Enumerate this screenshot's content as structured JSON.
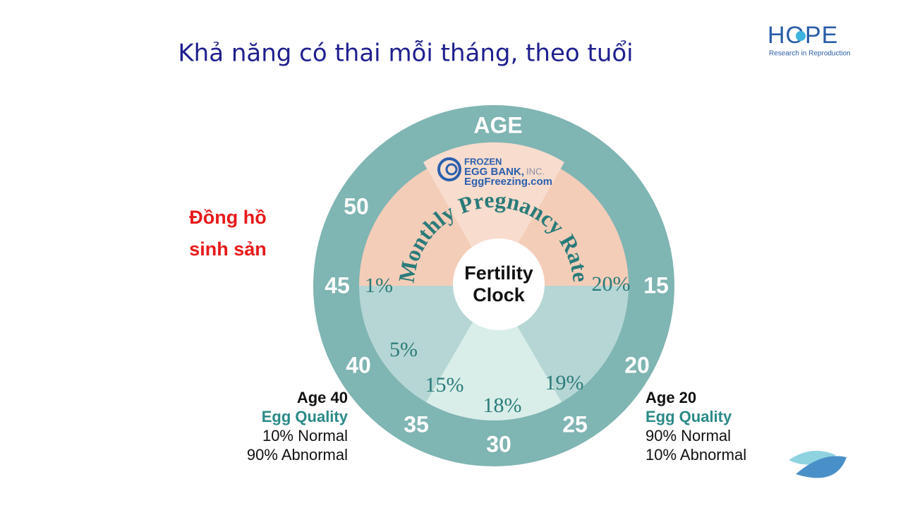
{
  "header": {
    "title": "Khả năng có thai mỗi tháng, theo tuổi",
    "logo": {
      "name": "HOPE",
      "tagline": "Research in Reproduction"
    }
  },
  "side_label": [
    "Đồng hồ",
    "sinh sản"
  ],
  "clock": {
    "outer_label": "AGE",
    "center": [
      "Fertility",
      "Clock"
    ],
    "arc_label": "Monthly Pregnancy Rate",
    "ages": [
      "15",
      "20",
      "25",
      "30",
      "35",
      "40",
      "45",
      "50"
    ],
    "rates": [
      "20%",
      "19%",
      "18%",
      "15%",
      "5%",
      "1%"
    ],
    "brand": [
      "FROZEN",
      "EGG BANK,",
      "INC.",
      "EggFreezing.com"
    ]
  },
  "notes": [
    {
      "age": "Age 40",
      "quality": "Egg Quality",
      "lines": [
        "10% Normal",
        "90% Abnormal"
      ]
    },
    {
      "age": "Age 20",
      "quality": "Egg Quality",
      "lines": [
        "90% Normal",
        "10% Abnormal"
      ]
    }
  ]
}
